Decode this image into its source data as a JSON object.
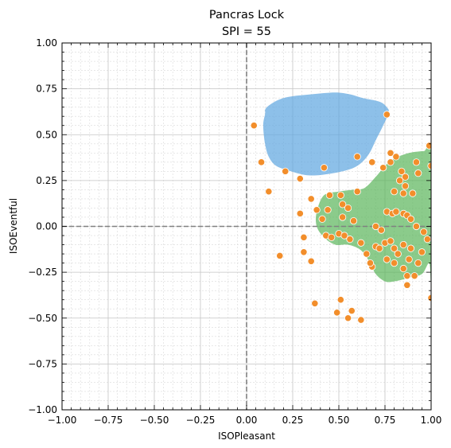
{
  "chart_data": {
    "type": "scatter",
    "title": "Pancras Lock",
    "subtitle": "SPI = 55",
    "xlabel": "ISOPleasant",
    "ylabel": "ISOEventful",
    "xlim": [
      -1,
      1
    ],
    "ylim": [
      -1,
      1
    ],
    "xticks": [
      "−1.00",
      "−0.75",
      "−0.50",
      "−0.25",
      "0.00",
      "0.25",
      "0.50",
      "0.75",
      "1.00"
    ],
    "yticks": [
      "−1.00",
      "−0.75",
      "−0.50",
      "−0.25",
      "0.00",
      "0.25",
      "0.50",
      "0.75",
      "1.00"
    ],
    "grid": "major and minor",
    "reference_lines": [
      {
        "axis": "x",
        "value": 0
      },
      {
        "axis": "y",
        "value": 0
      }
    ],
    "colors": {
      "points": "#f28e2b",
      "target_region": "#5da5e0",
      "observed_region": "#5ab55a",
      "reference_line": "#808080"
    },
    "target_region_outline": [
      [
        0.11,
        0.65
      ],
      [
        0.2,
        0.7
      ],
      [
        0.35,
        0.72
      ],
      [
        0.48,
        0.73
      ],
      [
        0.56,
        0.72
      ],
      [
        0.63,
        0.7
      ],
      [
        0.72,
        0.68
      ],
      [
        0.76,
        0.65
      ],
      [
        0.77,
        0.62
      ],
      [
        0.74,
        0.55
      ],
      [
        0.7,
        0.47
      ],
      [
        0.66,
        0.39
      ],
      [
        0.6,
        0.33
      ],
      [
        0.52,
        0.3
      ],
      [
        0.4,
        0.28
      ],
      [
        0.32,
        0.28
      ],
      [
        0.24,
        0.3
      ],
      [
        0.16,
        0.33
      ],
      [
        0.12,
        0.38
      ],
      [
        0.1,
        0.45
      ],
      [
        0.09,
        0.55
      ],
      [
        0.1,
        0.61
      ]
    ],
    "observed_region_outline": [
      [
        0.42,
        0.17
      ],
      [
        0.5,
        0.19
      ],
      [
        0.58,
        0.2
      ],
      [
        0.64,
        0.21
      ],
      [
        0.7,
        0.27
      ],
      [
        0.75,
        0.33
      ],
      [
        0.8,
        0.37
      ],
      [
        0.88,
        0.4
      ],
      [
        0.96,
        0.41
      ],
      [
        1.0,
        0.4
      ],
      [
        1.0,
        -0.3
      ],
      [
        0.99,
        -0.2
      ],
      [
        0.95,
        -0.26
      ],
      [
        0.88,
        -0.28
      ],
      [
        0.8,
        -0.3
      ],
      [
        0.75,
        -0.3
      ],
      [
        0.7,
        -0.26
      ],
      [
        0.67,
        -0.2
      ],
      [
        0.62,
        -0.13
      ],
      [
        0.55,
        -0.1
      ],
      [
        0.48,
        -0.1
      ],
      [
        0.42,
        -0.06
      ],
      [
        0.38,
        0.0
      ],
      [
        0.38,
        0.08
      ]
    ],
    "points": [
      [
        0.04,
        0.55
      ],
      [
        0.08,
        0.35
      ],
      [
        0.21,
        0.3
      ],
      [
        0.42,
        0.32
      ],
      [
        0.6,
        0.38
      ],
      [
        0.76,
        0.61
      ],
      [
        0.12,
        0.19
      ],
      [
        0.29,
        0.26
      ],
      [
        0.35,
        0.15
      ],
      [
        0.29,
        0.07
      ],
      [
        0.38,
        0.09
      ],
      [
        0.45,
        0.17
      ],
      [
        0.44,
        0.09
      ],
      [
        0.51,
        0.17
      ],
      [
        0.52,
        0.12
      ],
      [
        0.52,
        0.05
      ],
      [
        0.55,
        0.1
      ],
      [
        0.58,
        0.03
      ],
      [
        0.6,
        0.19
      ],
      [
        0.68,
        0.35
      ],
      [
        0.74,
        0.32
      ],
      [
        0.78,
        0.4
      ],
      [
        0.78,
        0.35
      ],
      [
        0.81,
        0.38
      ],
      [
        0.84,
        0.3
      ],
      [
        0.86,
        0.27
      ],
      [
        0.86,
        0.22
      ],
      [
        0.83,
        0.25
      ],
      [
        0.85,
        0.18
      ],
      [
        0.8,
        0.19
      ],
      [
        0.76,
        0.08
      ],
      [
        0.79,
        0.07
      ],
      [
        0.81,
        0.08
      ],
      [
        0.85,
        0.07
      ],
      [
        0.87,
        0.06
      ],
      [
        0.89,
        0.04
      ],
      [
        0.92,
        0.35
      ],
      [
        0.93,
        0.29
      ],
      [
        0.9,
        0.18
      ],
      [
        0.99,
        0.44
      ],
      [
        1.0,
        0.33
      ],
      [
        0.41,
        0.04
      ],
      [
        0.43,
        -0.05
      ],
      [
        0.46,
        -0.06
      ],
      [
        0.5,
        -0.04
      ],
      [
        0.53,
        -0.05
      ],
      [
        0.56,
        -0.07
      ],
      [
        0.62,
        -0.09
      ],
      [
        0.65,
        -0.15
      ],
      [
        0.68,
        -0.22
      ],
      [
        0.7,
        -0.11
      ],
      [
        0.72,
        -0.12
      ],
      [
        0.75,
        -0.09
      ],
      [
        0.78,
        -0.08
      ],
      [
        0.8,
        -0.12
      ],
      [
        0.82,
        -0.15
      ],
      [
        0.76,
        -0.18
      ],
      [
        0.8,
        -0.2
      ],
      [
        0.85,
        -0.23
      ],
      [
        0.87,
        -0.27
      ],
      [
        0.91,
        -0.27
      ],
      [
        0.93,
        -0.2
      ],
      [
        0.95,
        -0.14
      ],
      [
        0.98,
        -0.07
      ],
      [
        0.96,
        -0.03
      ],
      [
        0.92,
        0.0
      ],
      [
        0.89,
        -0.12
      ],
      [
        0.88,
        -0.18
      ],
      [
        0.85,
        -0.1
      ],
      [
        0.87,
        -0.32
      ],
      [
        0.31,
        -0.06
      ],
      [
        0.31,
        -0.14
      ],
      [
        0.35,
        -0.19
      ],
      [
        0.18,
        -0.16
      ],
      [
        0.37,
        -0.42
      ],
      [
        0.49,
        -0.47
      ],
      [
        0.51,
        -0.4
      ],
      [
        0.55,
        -0.5
      ],
      [
        0.57,
        -0.46
      ],
      [
        0.62,
        -0.51
      ],
      [
        1.0,
        -0.39
      ],
      [
        0.7,
        0.0
      ],
      [
        0.73,
        -0.02
      ],
      [
        0.67,
        -0.2
      ]
    ]
  }
}
